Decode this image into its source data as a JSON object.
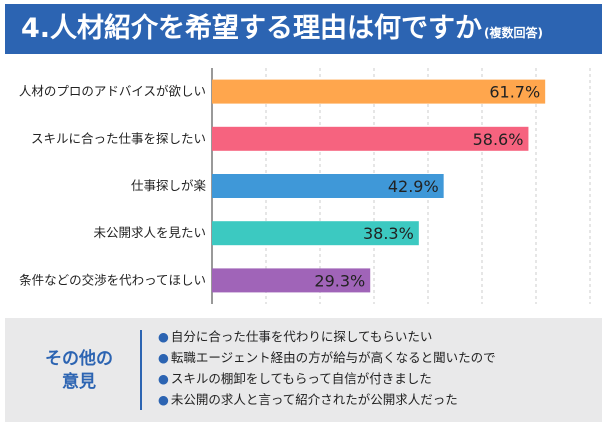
{
  "header": {
    "title": "4.人材紹介を希望する理由は何ですか",
    "subtitle": "(複数回答)"
  },
  "chart_data": {
    "type": "bar",
    "orientation": "horizontal",
    "categories": [
      "人材のプロのアドバイスが欲しい",
      "スキルに合った仕事を探したい",
      "仕事探しが楽",
      "未公開求人を見たい",
      "条件などの交渉を代わってほしい"
    ],
    "values": [
      61.7,
      58.6,
      42.9,
      38.3,
      29.3
    ],
    "value_labels": [
      "61.7%",
      "58.6%",
      "42.9%",
      "38.3%",
      "29.3%"
    ],
    "colors": [
      "#ffa64d",
      "#f6637f",
      "#3f98d8",
      "#3cc9c1",
      "#a064b8"
    ],
    "xlim": [
      0,
      100
    ],
    "grid": true
  },
  "other": {
    "title_line1": "その他の",
    "title_line2": "意見",
    "bullet_char": "●",
    "items": [
      "自分に合った仕事を代わりに探してもらいたい",
      "転職エージェント経由の方が給与が高くなると聞いたので",
      "スキルの棚卸をしてもらって自信が付きました",
      "未公開の求人と言って紹介されたが公開求人だった"
    ]
  }
}
